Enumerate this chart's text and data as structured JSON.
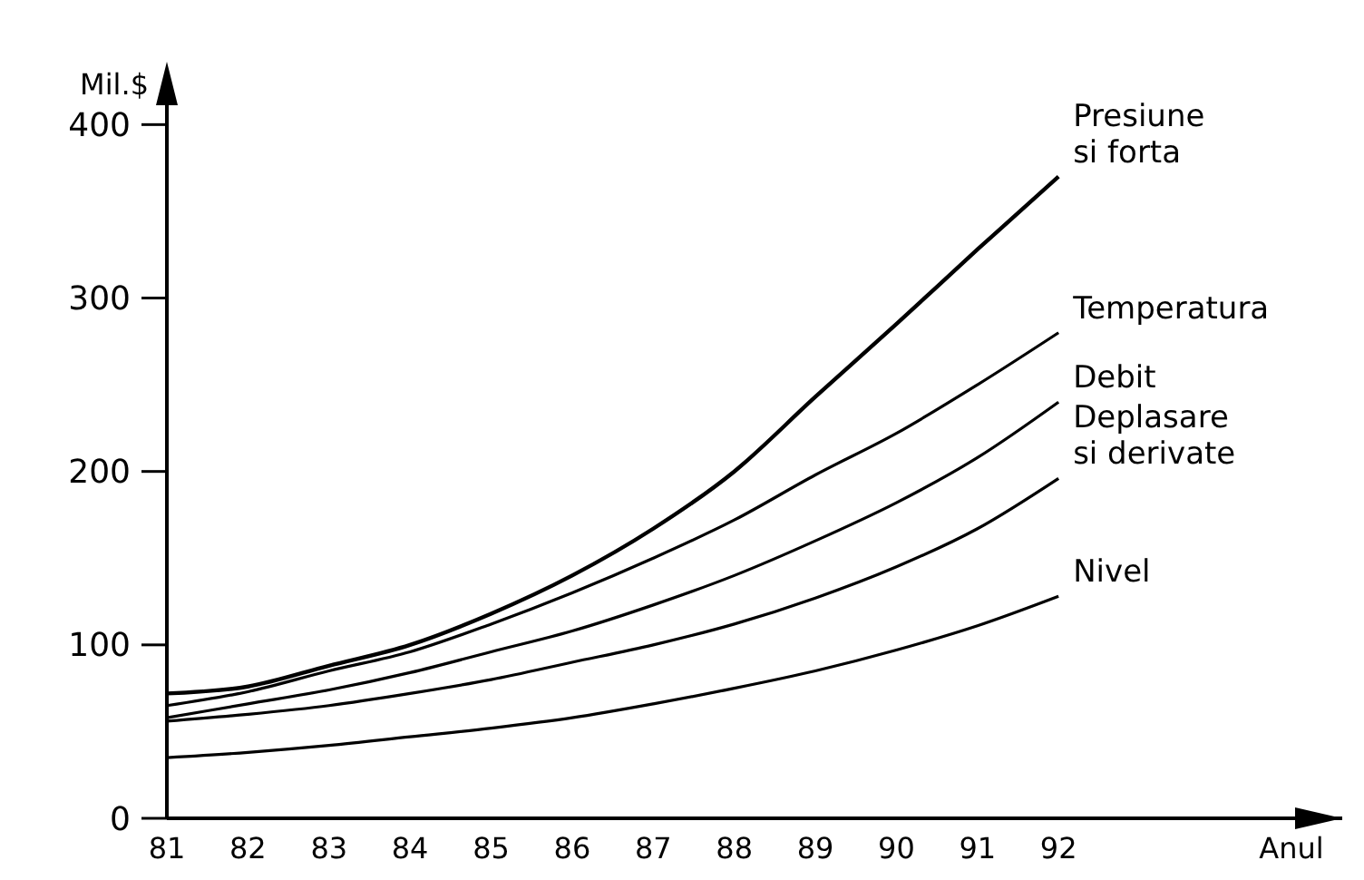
{
  "chart_data": {
    "type": "line",
    "xlabel": "Anul",
    "ylabel": "Mil.$",
    "x": [
      81,
      82,
      83,
      84,
      85,
      86,
      87,
      88,
      89,
      90,
      91,
      92
    ],
    "xlim": [
      81,
      95.5
    ],
    "xticks": [
      81,
      82,
      83,
      84,
      85,
      86,
      87,
      88,
      89,
      90,
      91,
      92
    ],
    "ylim": [
      0,
      430
    ],
    "yticks": [
      0,
      100,
      200,
      300,
      400
    ],
    "grid": false,
    "marker": "none",
    "line_style": "solid",
    "series": [
      {
        "name": "Presiune\nsi forta",
        "color": "#000000",
        "values": [
          72,
          76,
          88,
          100,
          118,
          140,
          167,
          200,
          243,
          285,
          328,
          370
        ]
      },
      {
        "name": "Temperatura",
        "color": "#000000",
        "values": [
          65,
          73,
          85,
          96,
          112,
          130,
          150,
          172,
          198,
          222,
          250,
          280
        ]
      },
      {
        "name": "Debit",
        "color": "#000000",
        "values": [
          58,
          66,
          74,
          84,
          96,
          108,
          123,
          140,
          160,
          182,
          208,
          240
        ]
      },
      {
        "name": "Deplasare\nsi derivate",
        "color": "#000000",
        "values": [
          56,
          60,
          65,
          72,
          80,
          90,
          100,
          112,
          127,
          145,
          167,
          196
        ]
      },
      {
        "name": "Nivel",
        "color": "#000000",
        "values": [
          35,
          38,
          42,
          47,
          52,
          58,
          66,
          75,
          85,
          97,
          111,
          128
        ]
      }
    ]
  }
}
